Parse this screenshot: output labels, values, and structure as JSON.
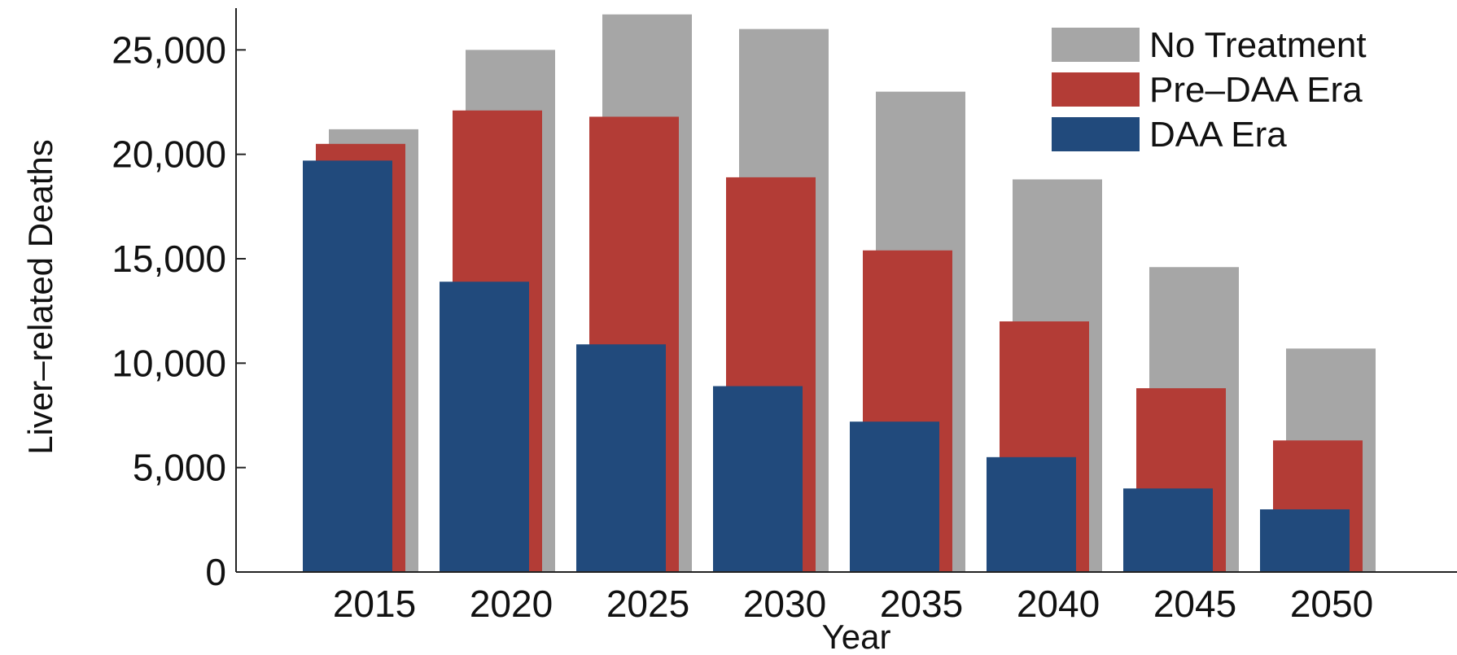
{
  "chart_data": {
    "type": "bar",
    "categories": [
      "2015",
      "2020",
      "2025",
      "2030",
      "2035",
      "2040",
      "2045",
      "2050"
    ],
    "series": [
      {
        "name": "No Treatment",
        "color": "#a6a6a6",
        "values": [
          21200,
          25000,
          26700,
          26000,
          23000,
          18800,
          14600,
          10700
        ]
      },
      {
        "name": "Pre–DAA Era",
        "color": "#b33c36",
        "values": [
          20500,
          22100,
          21800,
          18900,
          15400,
          12000,
          8800,
          6300
        ]
      },
      {
        "name": "DAA Era",
        "color": "#214a7c",
        "values": [
          19700,
          13900,
          10900,
          8900,
          7200,
          5500,
          4000,
          3000
        ]
      }
    ],
    "xlabel": "Year",
    "ylabel": "Liver–related Deaths",
    "ylim": [
      0,
      27000
    ],
    "yticks": [
      0,
      5000,
      10000,
      15000,
      20000,
      25000
    ],
    "ytick_labels": [
      "0",
      "5,000",
      "10,000",
      "15,000",
      "20,000",
      "25,000"
    ],
    "grid": false,
    "legend_position": "top-right"
  }
}
